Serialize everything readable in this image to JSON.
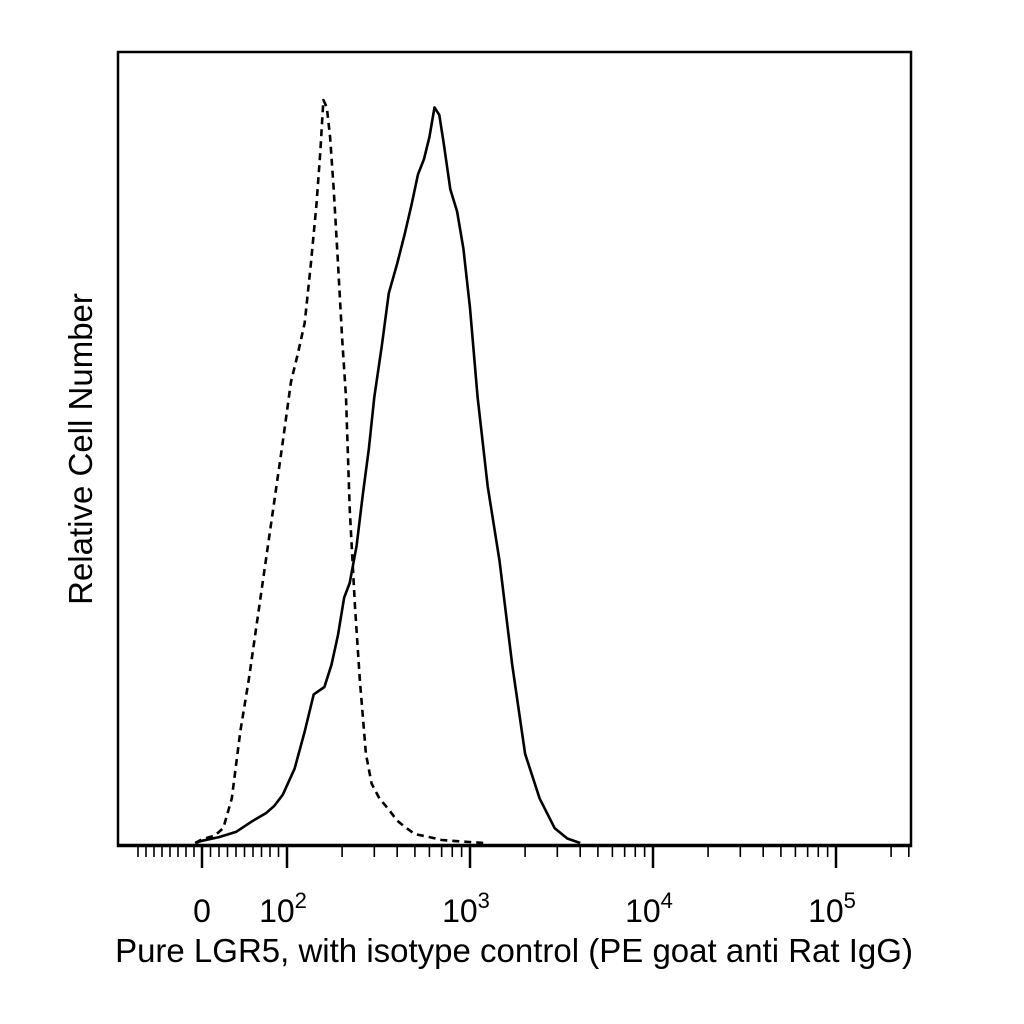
{
  "chart_data": {
    "type": "line",
    "title": "",
    "xlabel": "Pure LGR5, with isotype control (PE goat anti Rat IgG)",
    "ylabel": "Relative Cell Number",
    "x_scale": "biexponential (0, then log10)",
    "xlim": [
      -50,
      250000
    ],
    "ylim": [
      0,
      100
    ],
    "grid": false,
    "legend": "none",
    "x_ticks": [
      {
        "value": 0,
        "label": "0",
        "sup": ""
      },
      {
        "value": 100,
        "label": "10",
        "sup": "2"
      },
      {
        "value": 1000,
        "label": "10",
        "sup": "3"
      },
      {
        "value": 10000,
        "label": "10",
        "sup": "4"
      },
      {
        "value": 100000,
        "label": "10",
        "sup": "5"
      }
    ],
    "series": [
      {
        "style": "dashed",
        "x": [
          -8,
          0,
          15,
          25,
          35,
          45,
          55,
          65,
          75,
          85,
          95,
          105,
          115,
          125,
          135,
          145,
          152,
          158,
          165,
          172,
          180,
          190,
          200,
          210,
          220,
          235,
          250,
          270,
          290,
          320,
          360,
          400,
          450,
          500,
          600,
          700,
          900,
          1200
        ],
        "y": [
          0,
          0.5,
          1,
          2,
          6,
          15,
          22,
          30,
          38,
          46,
          54,
          62,
          66,
          70,
          78,
          86,
          93,
          100,
          99,
          95,
          88,
          78,
          68,
          60,
          45,
          32,
          22,
          12,
          8,
          6,
          4.5,
          3,
          2,
          1.2,
          0.8,
          0.4,
          0.2,
          0
        ]
      },
      {
        "style": "solid",
        "x": [
          -8,
          0,
          20,
          40,
          60,
          75,
          85,
          95,
          110,
          125,
          140,
          160,
          175,
          190,
          205,
          220,
          240,
          260,
          280,
          300,
          330,
          360,
          400,
          440,
          480,
          520,
          560,
          600,
          640,
          680,
          720,
          780,
          850,
          920,
          1000,
          1100,
          1250,
          1450,
          1700,
          2000,
          2400,
          2900,
          3400,
          4000
        ],
        "y": [
          0,
          0.3,
          0.8,
          1.5,
          3,
          4,
          5,
          6.5,
          10,
          15,
          20,
          21,
          24,
          28,
          33,
          35,
          40,
          47,
          53,
          60,
          67,
          74,
          78,
          82,
          86,
          90,
          92,
          95,
          99,
          98,
          94,
          88,
          85,
          80,
          72,
          60,
          48,
          38,
          24,
          12,
          6,
          2,
          0.6,
          0
        ]
      }
    ]
  }
}
